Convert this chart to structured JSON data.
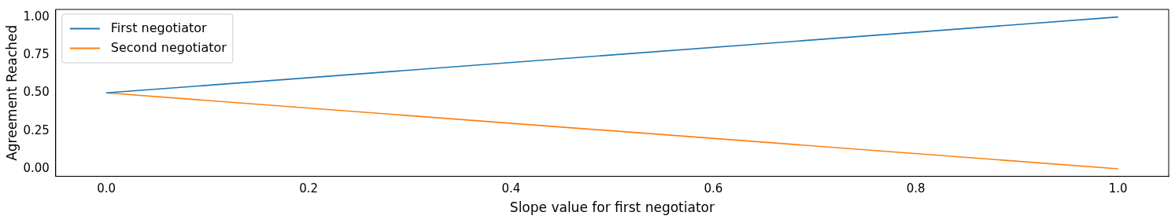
{
  "chart_data": {
    "type": "line",
    "xlabel": "Slope value for first negotiator",
    "ylabel": "Agreement Reached",
    "x": [
      0,
      1
    ],
    "series": [
      {
        "name": "First negotiator",
        "color": "#1f77b4",
        "values": [
          0.5,
          1.0
        ]
      },
      {
        "name": "Second negotiator",
        "color": "#ff7f0e",
        "values": [
          0.5,
          0.0
        ]
      }
    ],
    "xlim": [
      -0.05,
      1.05
    ],
    "xticks": [
      {
        "value": 0,
        "label": "0.0"
      },
      0.2,
      0.4,
      0.6,
      0.8,
      {
        "value": 1,
        "label": "1.0"
      }
    ],
    "ylim": [
      -0.05,
      1.05
    ],
    "yticks": [
      {
        "value": 0,
        "label": "0.00"
      },
      {
        "value": 0.25,
        "label": "0.25"
      },
      {
        "value": 0.5,
        "label": "0.50"
      },
      {
        "value": 0.75,
        "label": "0.75"
      },
      {
        "value": 1,
        "label": "1.00"
      }
    ],
    "grid": false,
    "legend": "top left",
    "marker": "none",
    "line_style": "solid"
  }
}
